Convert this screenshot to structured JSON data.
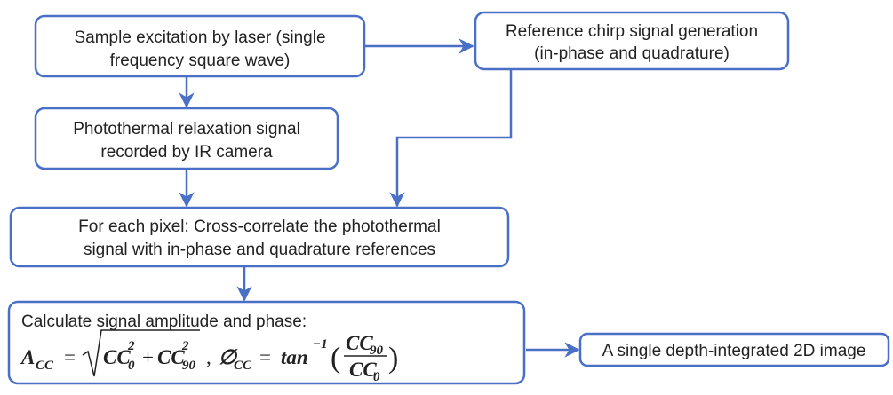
{
  "nodes": [
    {
      "lines": [
        "Sample excitation by laser (single",
        "frequency square wave)"
      ]
    },
    {
      "lines": [
        "Reference chirp signal generation",
        "(in-phase and quadrature)"
      ]
    },
    {
      "lines": [
        "Photothermal relaxation signal",
        "recorded by IR camera"
      ]
    },
    {
      "lines": [
        "For each pixel: Cross-correlate the photothermal",
        "signal with in-phase and quadrature references"
      ]
    },
    {
      "lines": [
        "Calculate signal amplitude and phase:"
      ]
    },
    {
      "lines": [
        "A single depth-integrated 2D image"
      ]
    }
  ],
  "formula": {
    "amp_symbol": "A",
    "amp_sub": "CC",
    "equals": "=",
    "term1_base": "CC",
    "term1_sup": "2",
    "term1_sub": "0",
    "plus": "+",
    "term2_base": "CC",
    "term2_sup": "2",
    "term2_sub": "90",
    "separator": ",",
    "phase_symbol": "∅",
    "phase_sub": "CC",
    "equals2": "=",
    "func": "tan",
    "func_sup": "−1",
    "open": "(",
    "close": ")",
    "num_base": "CC",
    "num_sub": "90",
    "den_base": "CC",
    "den_sub": "0"
  }
}
